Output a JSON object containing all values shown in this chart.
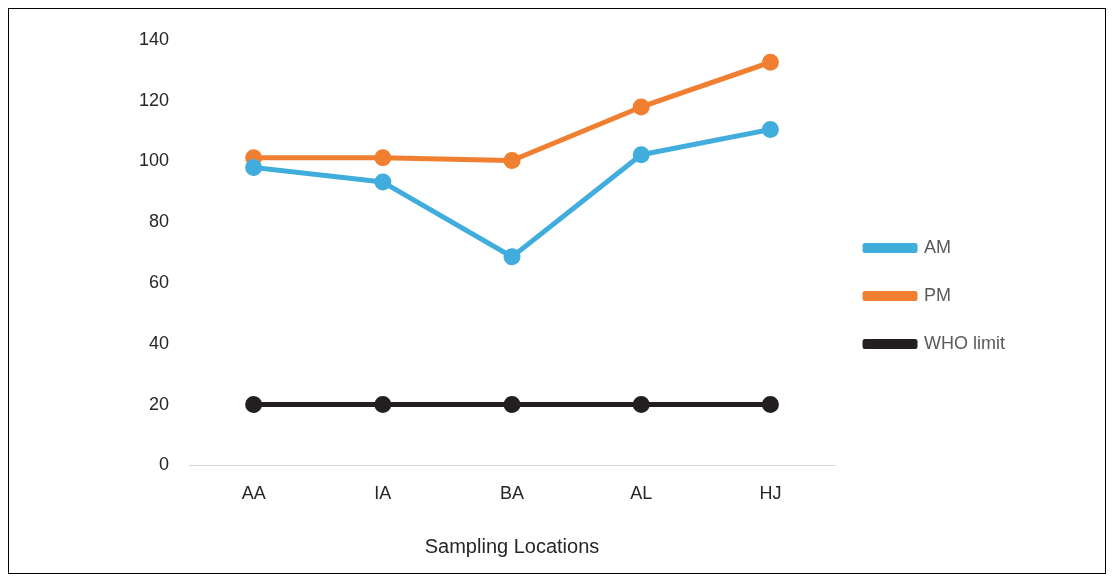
{
  "chart_data": {
    "type": "line",
    "xlabel": "Sampling Locations",
    "categories": [
      "AA",
      "IA",
      "BA",
      "AL",
      "HJ"
    ],
    "series": [
      {
        "name": "AM",
        "color": "#41addd",
        "values": [
          98,
          93.2,
          68.6,
          102.2,
          110.5
        ]
      },
      {
        "name": "PM",
        "color": "#f07f31",
        "values": [
          101.2,
          101.2,
          100.3,
          117.9,
          132.6
        ]
      },
      {
        "name": "WHO limit",
        "color": "#231f20",
        "values": [
          20,
          20,
          20,
          20,
          20
        ]
      }
    ],
    "ylim": [
      0,
      140
    ],
    "yticks": [
      0,
      20,
      40,
      60,
      80,
      100,
      120,
      140
    ],
    "grid": false,
    "legend": "right",
    "marker": "circle",
    "line_style": "solid"
  }
}
